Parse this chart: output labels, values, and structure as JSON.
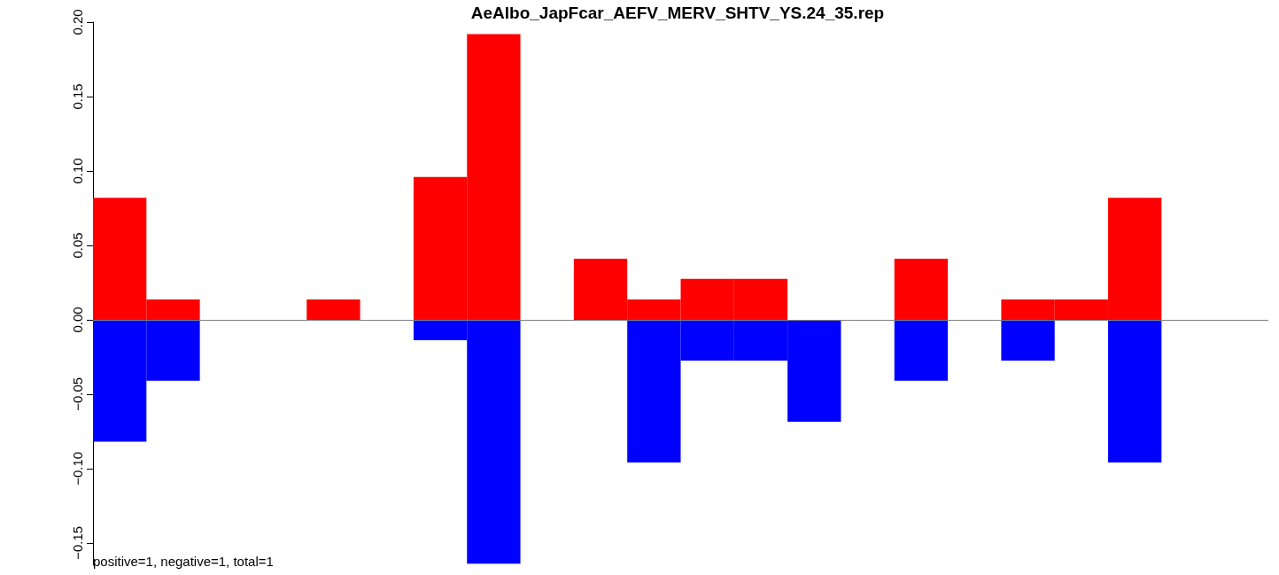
{
  "chart_data": {
    "type": "bar",
    "title": "AeAlbo_JapFcar_AEFV_MERV_SHTV_YS.24_35.rep",
    "categories": [
      null,
      null,
      null,
      null,
      null,
      null,
      null,
      null,
      null,
      null,
      null,
      null,
      null,
      null,
      null,
      null,
      null,
      null,
      null,
      null,
      null,
      null
    ],
    "stacked": true,
    "series": [
      {
        "color": "#ff0000",
        "values": [
          0.082,
          0.0137,
          0,
          0,
          0.0137,
          0,
          0.096,
          0.192,
          0,
          0.041,
          0.0137,
          0.0274,
          0.0274,
          0,
          0,
          0.041,
          0,
          0.0137,
          0.0137,
          0.082,
          0,
          0
        ]
      },
      {
        "color": "#0000ff",
        "values": [
          -0.082,
          -0.041,
          0,
          0,
          0,
          0,
          -0.0137,
          -0.164,
          0,
          0,
          -0.096,
          -0.0274,
          -0.0274,
          -0.0685,
          0,
          -0.041,
          0,
          -0.0274,
          0,
          -0.096,
          0,
          0
        ]
      }
    ],
    "ylim": [
      -0.165,
      0.2
    ],
    "yticks": [
      {
        "value": -0.15,
        "label": "−0.15"
      },
      {
        "value": -0.1,
        "label": "−0.10"
      },
      {
        "value": -0.05,
        "label": "−0.05"
      },
      {
        "value": 0,
        "label": "0.00"
      },
      {
        "value": 0.05,
        "label": "0.05"
      },
      {
        "value": 0.1,
        "label": "0.10"
      },
      {
        "value": 0.15,
        "label": "0.15"
      },
      {
        "value": 0.2,
        "label": "0.20"
      }
    ],
    "tick_labels": "y",
    "grid": false,
    "ref_lines": [
      {
        "axis": "y",
        "value": 0,
        "color": "#808080"
      }
    ],
    "annotations": [
      "positive=1, negative=1, total=1"
    ]
  }
}
